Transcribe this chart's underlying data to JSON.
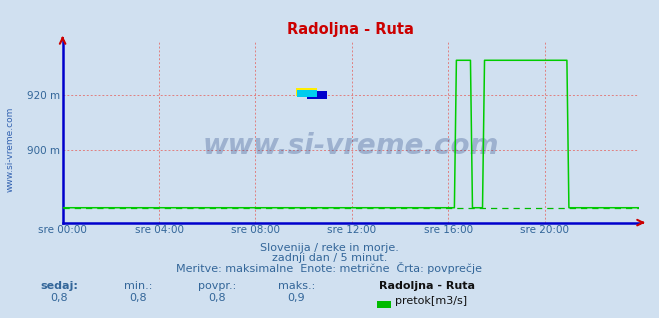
{
  "title": "Radoljna - Ruta",
  "title_color": "#cc0000",
  "bg_color": "#d0e0f0",
  "plot_bg_color": "#d0e0f0",
  "grid_color_pink": "#e08080",
  "grid_color_gray": "#b0c0d0",
  "axis_color": "#0000cc",
  "tick_label_color": "#336699",
  "ylim": [
    873,
    940
  ],
  "xlim": [
    0,
    287
  ],
  "xtick_positions": [
    0,
    48,
    96,
    144,
    192,
    240
  ],
  "xtick_labels": [
    "sre 00:00",
    "sre 04:00",
    "sre 08:00",
    "sre 12:00",
    "sre 16:00",
    "sre 20:00"
  ],
  "ytick_positions": [
    900,
    920
  ],
  "ytick_labels": [
    "900 m",
    "920 m"
  ],
  "line_color": "#00cc00",
  "avg_line_color": "#00bb00",
  "avg_value": 878.5,
  "watermark": "www.si-vreme.com",
  "watermark_color": "#1a3a7a",
  "sidebar_text": "www.si-vreme.com",
  "sidebar_color": "#2255aa",
  "subtitle1": "Slovenija / reke in morje.",
  "subtitle2": "zadnji dan / 5 minut.",
  "subtitle3": "Meritve: maksimalne  Enote: metrične  Črta: povprečje",
  "subtitle_color": "#336699",
  "legend_items": [
    {
      "label": "sedaj:",
      "value": "0,8",
      "bold": true
    },
    {
      "label": "min.:",
      "value": "0,8",
      "bold": false
    },
    {
      "label": "povpr.:",
      "value": "0,8",
      "bold": false
    },
    {
      "label": "maks.:",
      "value": "0,9",
      "bold": false
    }
  ],
  "station_label": "Radoljna - Ruta",
  "series_label": "pretok[m3/s]",
  "series_color": "#00bb00",
  "n_points": 288,
  "base_value": 878.5,
  "spike_top": 933,
  "spike_segments": [
    {
      "start": 196,
      "end": 204,
      "val": 933
    },
    {
      "start": 204,
      "end": 210,
      "val": 878.5
    },
    {
      "start": 210,
      "end": 222,
      "val": 933
    },
    {
      "start": 222,
      "end": 252,
      "val": 933
    },
    {
      "start": 252,
      "end": 256,
      "val": 878.5
    }
  ]
}
